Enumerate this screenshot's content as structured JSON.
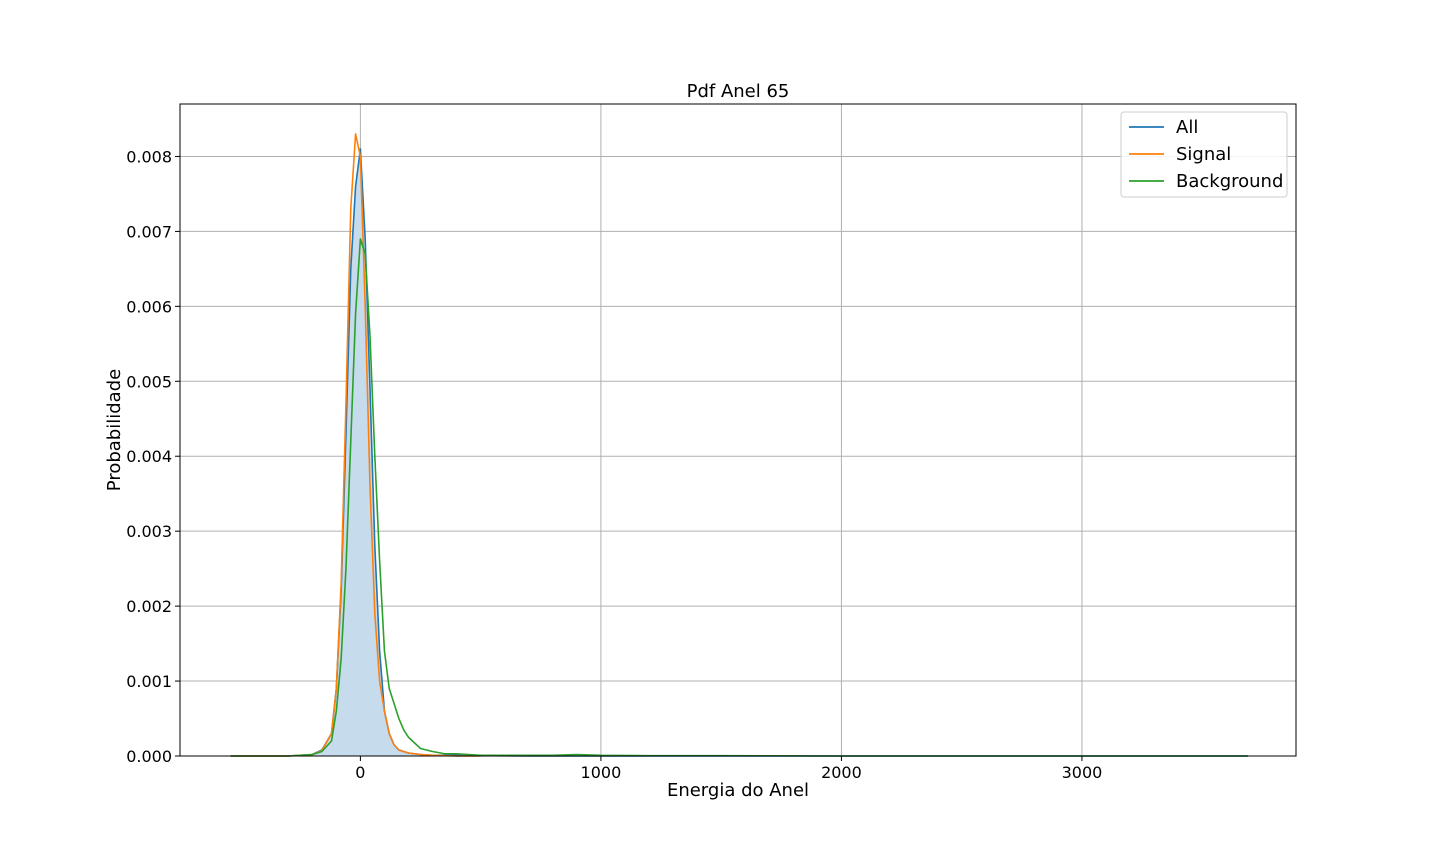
{
  "chart_data": {
    "type": "line",
    "title": "Pdf Anel 65",
    "xlabel": "Energia do Anel",
    "ylabel": "Probabilidade",
    "xlim": [
      -750,
      3890
    ],
    "ylim": [
      0,
      0.0087
    ],
    "xticks": [
      0,
      1000,
      2000,
      3000
    ],
    "xtick_labels": [
      "0",
      "1000",
      "2000",
      "3000"
    ],
    "yticks": [
      0,
      0.001,
      0.002,
      0.003,
      0.004,
      0.005,
      0.006,
      0.007,
      0.008
    ],
    "ytick_labels": [
      "0.000",
      "0.001",
      "0.002",
      "0.003",
      "0.004",
      "0.005",
      "0.006",
      "0.007",
      "0.008"
    ],
    "grid": true,
    "legend_position": "top-right",
    "fill_under": "All",
    "fill_color": "#c6dbec",
    "series": [
      {
        "name": "All",
        "color": "#1f77b4",
        "x": [
          -540,
          -400,
          -300,
          -200,
          -160,
          -120,
          -100,
          -80,
          -60,
          -40,
          -20,
          0,
          20,
          40,
          60,
          80,
          100,
          120,
          140,
          160,
          200,
          250,
          300,
          400,
          500,
          700,
          1000,
          1500,
          2000,
          2500,
          3000,
          3500,
          3690
        ],
        "y": [
          0,
          0,
          0,
          2e-05,
          8e-05,
          0.0003,
          0.0009,
          0.0022,
          0.0043,
          0.0065,
          0.0076,
          0.0081,
          0.0069,
          0.0049,
          0.0028,
          0.0014,
          0.0006,
          0.0003,
          0.00015,
          8e-05,
          4e-05,
          2e-05,
          1e-05,
          1e-05,
          5e-06,
          0,
          0,
          0,
          0,
          0,
          0,
          0,
          0
        ]
      },
      {
        "name": "Signal",
        "color": "#ff7f0e",
        "x": [
          -540,
          -400,
          -300,
          -200,
          -160,
          -120,
          -100,
          -80,
          -60,
          -40,
          -20,
          0,
          20,
          40,
          60,
          80,
          100,
          120,
          140,
          160,
          200,
          250,
          300,
          400,
          500
        ],
        "y": [
          0,
          0,
          0,
          2e-05,
          7e-05,
          0.0003,
          0.0009,
          0.0023,
          0.0047,
          0.0073,
          0.0083,
          0.008,
          0.006,
          0.0036,
          0.0019,
          0.001,
          0.0006,
          0.0003,
          0.00015,
          8e-05,
          4e-05,
          2e-05,
          1e-05,
          0,
          0
        ]
      },
      {
        "name": "Background",
        "color": "#2ca02c",
        "x": [
          -540,
          -400,
          -300,
          -200,
          -160,
          -120,
          -100,
          -80,
          -60,
          -40,
          -20,
          0,
          20,
          40,
          60,
          80,
          100,
          120,
          140,
          160,
          180,
          200,
          250,
          300,
          350,
          400,
          450,
          500,
          600,
          700,
          800,
          900,
          1000,
          1200,
          1500,
          2000,
          2500,
          3000,
          3500,
          3690
        ],
        "y": [
          0,
          0,
          0,
          2e-05,
          6e-05,
          0.0002,
          0.0006,
          0.0013,
          0.0025,
          0.0042,
          0.0059,
          0.0069,
          0.0067,
          0.0056,
          0.004,
          0.0026,
          0.0014,
          0.0009,
          0.0007,
          0.0005,
          0.00035,
          0.00025,
          0.0001,
          6e-05,
          3e-05,
          3e-05,
          2e-05,
          1e-05,
          1e-05,
          1e-05,
          1e-05,
          2e-05,
          1e-05,
          5e-06,
          5e-06,
          0,
          0,
          0,
          0,
          0
        ]
      }
    ]
  }
}
